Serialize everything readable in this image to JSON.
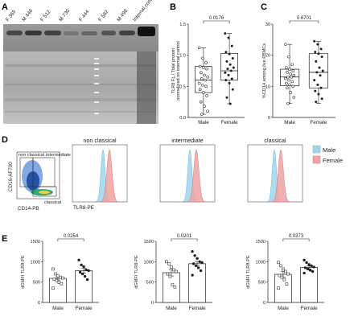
{
  "panels": {
    "A": {
      "letter": "A",
      "lanes": [
        "F 365",
        "M 446",
        "F 512",
        "M 730",
        "F 444",
        "F 582",
        "M 498",
        "Internal control"
      ],
      "background": "#777777"
    },
    "B": {
      "letter": "B",
      "pvalue": "0.0176",
      "ylabel_line1": "TLR8 FL / Total protein",
      "ylabel_line2": "normalized on internal control",
      "yticks": [
        "0.0",
        "0.5",
        "1.0",
        "1.5"
      ]
    },
    "C": {
      "letter": "C",
      "pvalue": "0.6701",
      "ylabel": "%CD14 among live PBMCs",
      "yticks": [
        "0",
        "10",
        "20",
        "30"
      ]
    },
    "D": {
      "letter": "D",
      "gate_labels": [
        "non classical",
        "intermediate",
        "classical"
      ],
      "yaxis": "CD16-AF700",
      "xaxis": "CD14-PB",
      "histogram_titles": [
        "non classical",
        "intermediate",
        "classical"
      ],
      "hist_xlabel": "TLR8-PE",
      "legend": [
        {
          "label": "Male",
          "color": "#9fd6ee"
        },
        {
          "label": "Female",
          "color": "#f1a3a3"
        }
      ]
    },
    "E": {
      "letter": "E",
      "ylabel": "dGMFI TLR8-PE",
      "yticks": [
        "0",
        "500",
        "1000",
        "1500"
      ],
      "pvalues": [
        "0.0254",
        "0.0201",
        "0.0373"
      ]
    }
  },
  "group_labels": [
    "Male",
    "Female"
  ],
  "chart_data": [
    {
      "type": "bar",
      "panel": "B",
      "plot": "box",
      "categories": [
        "Male",
        "Female"
      ],
      "ylabel": "TLR8 FL / Total protein normalized on internal control",
      "ylim": [
        0,
        1.5
      ],
      "box": [
        {
          "q1": 0.4,
          "median": 0.6,
          "q3": 0.82,
          "min": 0.05,
          "max": 1.12
        },
        {
          "q1": 0.6,
          "median": 0.75,
          "q3": 1.03,
          "min": 0.22,
          "max": 1.35
        }
      ],
      "points": [
        [
          1.12,
          0.95,
          0.88,
          0.82,
          0.8,
          0.78,
          0.72,
          0.68,
          0.65,
          0.62,
          0.6,
          0.55,
          0.52,
          0.5,
          0.45,
          0.4,
          0.35,
          0.25,
          0.18,
          0.1,
          0.05
        ],
        [
          1.35,
          1.28,
          1.15,
          1.05,
          1.02,
          0.95,
          0.9,
          0.85,
          0.8,
          0.78,
          0.75,
          0.72,
          0.68,
          0.62,
          0.6,
          0.55,
          0.45,
          0.32,
          0.22
        ]
      ],
      "pvalue": "0.0176"
    },
    {
      "type": "bar",
      "panel": "C",
      "plot": "box",
      "categories": [
        "Male",
        "Female"
      ],
      "ylabel": "%CD14 among live PBMCs",
      "ylim": [
        0,
        30
      ],
      "box": [
        {
          "q1": 10.2,
          "median": 13,
          "q3": 15.5,
          "min": 4.5,
          "max": 23.5
        },
        {
          "q1": 9.5,
          "median": 14.5,
          "q3": 20.5,
          "min": 4.5,
          "max": 24.5
        }
      ],
      "points": [
        [
          23.5,
          19.5,
          17,
          16,
          15.5,
          15,
          14.5,
          14,
          13.5,
          13,
          13,
          12.5,
          12,
          11.5,
          11,
          10.5,
          10,
          9.5,
          8,
          6.5,
          4.5
        ],
        [
          24.5,
          23.5,
          22,
          21,
          20.5,
          19.5,
          18,
          16,
          15,
          14.5,
          13.5,
          12,
          10.5,
          9.5,
          8.5,
          7.5,
          6,
          5
        ]
      ],
      "pvalue": "0.6701"
    },
    {
      "type": "bar",
      "panel": "E-nonclassical",
      "categories": [
        "Male",
        "Female"
      ],
      "values": [
        590,
        780
      ],
      "errors": [
        40,
        55
      ],
      "ylabel": "dGMFI TLR8-PE",
      "ylim": [
        0,
        1500
      ],
      "points": [
        [
          820,
          700,
          650,
          620,
          600,
          570,
          540,
          490,
          460,
          350
        ],
        [
          1040,
          920,
          880,
          800,
          780,
          740,
          700,
          640,
          560
        ]
      ],
      "pvalue": "0.0254"
    },
    {
      "type": "bar",
      "panel": "E-intermediate",
      "categories": [
        "Male",
        "Female"
      ],
      "values": [
        730,
        950
      ],
      "errors": [
        80,
        55
      ],
      "ylabel": "dGMFI TLR8-PE",
      "ylim": [
        0,
        1500
      ],
      "points": [
        [
          1000,
          950,
          870,
          800,
          760,
          700,
          640,
          430,
          380
        ],
        [
          1250,
          1150,
          1080,
          1000,
          980,
          950,
          900,
          850,
          780,
          670
        ]
      ],
      "pvalue": "0.0201"
    },
    {
      "type": "bar",
      "panel": "E-classical",
      "categories": [
        "Male",
        "Female"
      ],
      "values": [
        690,
        860
      ],
      "errors": [
        70,
        35
      ],
      "ylabel": "dGMFI TLR8-PE",
      "ylim": [
        0,
        1500
      ],
      "points": [
        [
          980,
          900,
          820,
          760,
          700,
          660,
          620,
          560,
          450,
          350
        ],
        [
          1040,
          980,
          930,
          900,
          870,
          850,
          820,
          790,
          760,
          720
        ]
      ],
      "pvalue": "0.0373"
    }
  ]
}
